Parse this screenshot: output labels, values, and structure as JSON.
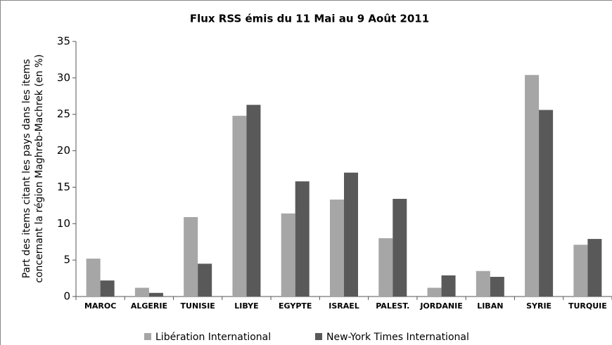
{
  "chart_data": {
    "type": "bar",
    "title": "Flux RSS émis du 11 Mai au 9 Août 2011",
    "ylabel": [
      "Part des items citant les pays dans les items",
      "concernant la région Maghreb-Machrek (en %)"
    ],
    "categories": [
      "MAROC",
      "ALGERIE",
      "TUNISIE",
      "LIBYE",
      "EGYPTE",
      "ISRAEL",
      "PALEST.",
      "JORDANIE",
      "LIBAN",
      "SYRIE",
      "TURQUIE"
    ],
    "series": [
      {
        "name": "Libération International",
        "color": "#a6a6a6",
        "values": [
          5.2,
          1.2,
          10.9,
          24.8,
          11.4,
          13.3,
          8.0,
          1.2,
          3.5,
          30.4,
          7.1
        ]
      },
      {
        "name": "New-York Times International",
        "color": "#595959",
        "values": [
          2.2,
          0.5,
          4.5,
          26.3,
          15.8,
          17.0,
          13.4,
          2.9,
          2.7,
          25.6,
          7.9
        ]
      }
    ],
    "ylim": [
      0,
      35
    ],
    "yticks": [
      0,
      5,
      10,
      15,
      20,
      25,
      30,
      35
    ],
    "grid": false
  }
}
